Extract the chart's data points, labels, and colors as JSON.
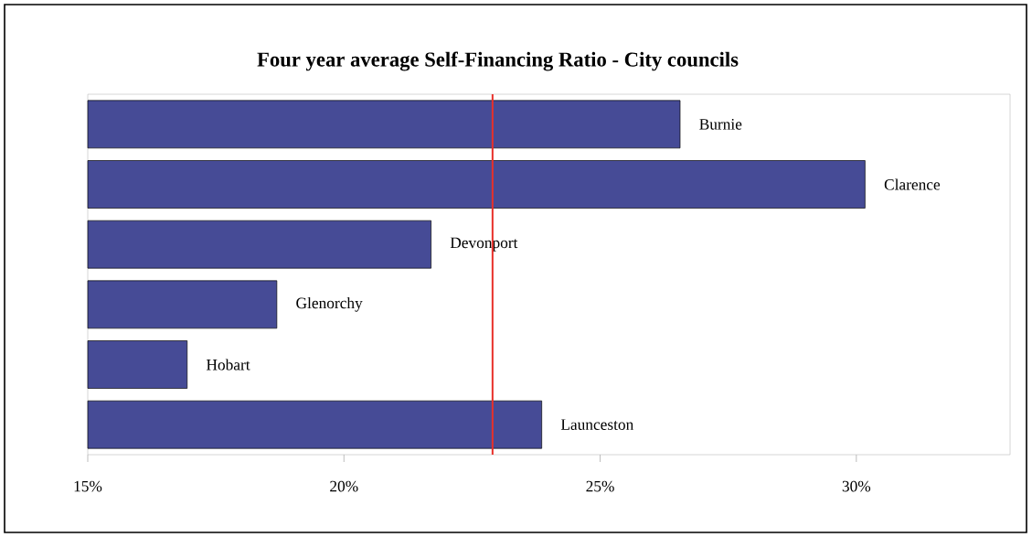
{
  "chart_data": {
    "type": "bar",
    "orientation": "horizontal",
    "title": "Four year average Self-Financing Ratio - City councils",
    "categories": [
      "Burnie",
      "Clarence",
      "Devonport",
      "Glenorchy",
      "Hobart",
      "Launceston"
    ],
    "values": [
      26.56,
      30.17,
      21.7,
      18.69,
      16.94,
      23.86
    ],
    "color": "#464b96",
    "xlim": [
      15,
      33
    ],
    "xticks": [
      {
        "value": 15,
        "label": "15%"
      },
      {
        "value": 20,
        "label": "20%"
      },
      {
        "value": 25,
        "label": "25%"
      },
      {
        "value": 30,
        "label": "30%"
      }
    ],
    "ref_lines": [
      {
        "axis": "x",
        "value": 22.9,
        "color": "#e8302a"
      }
    ]
  }
}
